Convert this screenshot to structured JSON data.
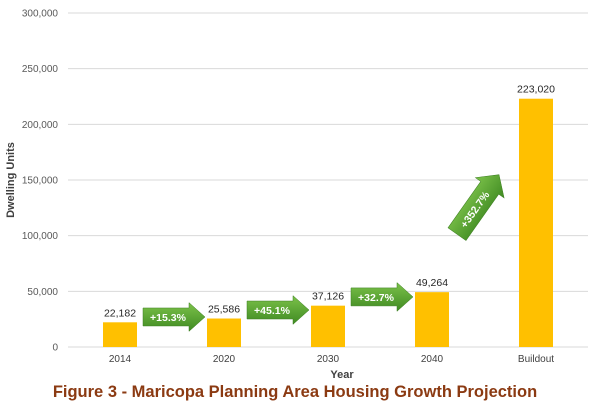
{
  "chart_data": {
    "type": "bar",
    "categories": [
      "2014",
      "2020",
      "2030",
      "2040",
      "Buildout"
    ],
    "values": [
      22182,
      25586,
      37126,
      49264,
      223020
    ],
    "data_labels": [
      "22,182",
      "25,586",
      "37,126",
      "49,264",
      "223,020"
    ],
    "xlabel": "Year",
    "ylabel": "Dwelling Units",
    "ylim": [
      0,
      300000
    ],
    "yticks": [
      0,
      50000,
      100000,
      150000,
      200000,
      250000,
      300000
    ],
    "ytick_labels": [
      "0",
      "50,000",
      "100,000",
      "150,000",
      "200,000",
      "250,000",
      "300,000"
    ],
    "grid": true,
    "bar_color": "#ffc000",
    "annotations": [
      {
        "label": "+15.3%",
        "from": "2014",
        "to": "2020"
      },
      {
        "label": "+45.1%",
        "from": "2020",
        "to": "2030"
      },
      {
        "label": "+32.7%",
        "from": "2030",
        "to": "2040"
      },
      {
        "label": "+352.7%",
        "from": "2040",
        "to": "Buildout"
      }
    ],
    "annotation_color": "#5aa832"
  },
  "caption": "Figure 3 - Maricopa Planning Area Housing Growth Projection",
  "colors": {
    "caption": "#8b3a12",
    "grid": "#d9d9d9"
  }
}
